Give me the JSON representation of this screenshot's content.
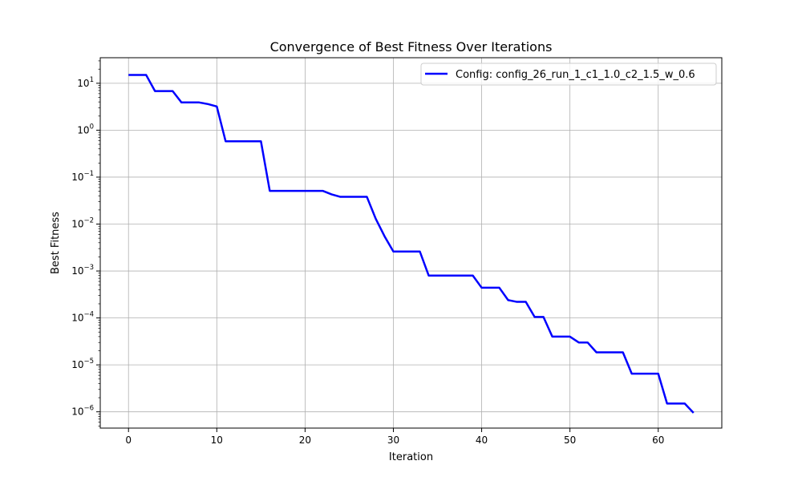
{
  "chart_data": {
    "type": "line",
    "title": "Convergence of Best Fitness Over Iterations",
    "xlabel": "Iteration",
    "ylabel": "Best Fitness",
    "xlim": [
      -3.2,
      67.2
    ],
    "ylim": [
      4.5e-07,
      35
    ],
    "yscale": "log",
    "grid": true,
    "legend_position": "top-right",
    "x_ticks": [
      0,
      10,
      20,
      30,
      40,
      50,
      60
    ],
    "y_ticks": [
      {
        "value": 1e-06,
        "base": "10",
        "exp": "−6"
      },
      {
        "value": 1e-05,
        "base": "10",
        "exp": "−5"
      },
      {
        "value": 0.0001,
        "base": "10",
        "exp": "−4"
      },
      {
        "value": 0.001,
        "base": "10",
        "exp": "−3"
      },
      {
        "value": 0.01,
        "base": "10",
        "exp": "−2"
      },
      {
        "value": 0.1,
        "base": "10",
        "exp": "−1"
      },
      {
        "value": 1,
        "base": "10",
        "exp": "0"
      },
      {
        "value": 10,
        "base": "10",
        "exp": "1"
      }
    ],
    "series": [
      {
        "name": "Config: config_26_run_1_c1_1.0_c2_1.5_w_0.6",
        "color": "#0000ff",
        "x": [
          0,
          1,
          2,
          3,
          4,
          5,
          6,
          7,
          8,
          9,
          10,
          11,
          12,
          13,
          14,
          15,
          16,
          17,
          18,
          19,
          20,
          21,
          22,
          23,
          24,
          25,
          26,
          27,
          28,
          29,
          30,
          31,
          32,
          33,
          34,
          35,
          36,
          37,
          38,
          39,
          40,
          41,
          42,
          43,
          44,
          45,
          46,
          47,
          48,
          49,
          50,
          51,
          52,
          53,
          54,
          55,
          56,
          57,
          58,
          59,
          60,
          61,
          62,
          63,
          64
        ],
        "y": [
          15,
          15,
          15,
          6.8,
          6.8,
          6.8,
          3.9,
          3.9,
          3.9,
          3.6,
          3.2,
          0.58,
          0.58,
          0.58,
          0.58,
          0.58,
          0.051,
          0.051,
          0.051,
          0.051,
          0.051,
          0.051,
          0.051,
          0.043,
          0.038,
          0.038,
          0.038,
          0.038,
          0.013,
          0.0055,
          0.0026,
          0.0026,
          0.0026,
          0.0026,
          0.0008,
          0.0008,
          0.0008,
          0.0008,
          0.0008,
          0.0008,
          0.00044,
          0.00044,
          0.00044,
          0.00024,
          0.00022,
          0.00022,
          0.000105,
          0.000105,
          4e-05,
          4e-05,
          4e-05,
          3e-05,
          3e-05,
          1.85e-05,
          1.85e-05,
          1.85e-05,
          1.85e-05,
          6.5e-06,
          6.5e-06,
          6.5e-06,
          6.5e-06,
          1.5e-06,
          1.5e-06,
          1.5e-06,
          9.5e-07
        ]
      }
    ]
  }
}
